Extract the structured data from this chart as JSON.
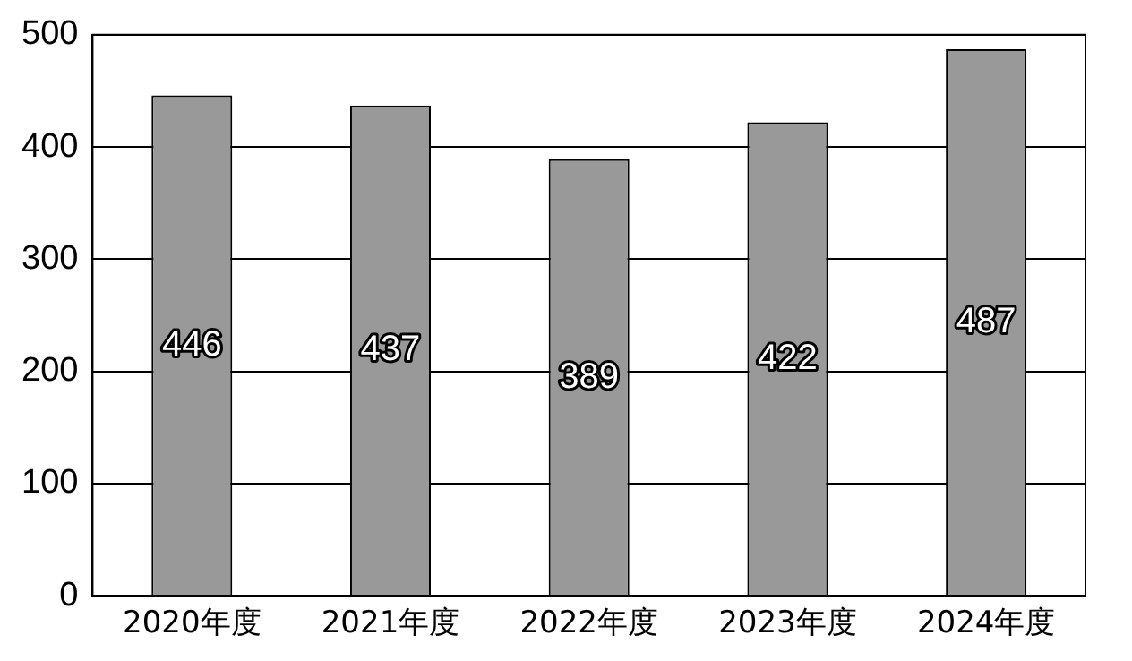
{
  "chart_data": {
    "type": "bar",
    "categories": [
      "2020年度",
      "2021年度",
      "2022年度",
      "2023年度",
      "2024年度"
    ],
    "values": [
      446,
      437,
      389,
      422,
      487
    ],
    "color": "#999999",
    "ylim": [
      0,
      500
    ],
    "yticks": [
      0,
      100,
      200,
      300,
      400,
      500
    ],
    "grid": "y",
    "legend": false,
    "data_labels": true
  }
}
